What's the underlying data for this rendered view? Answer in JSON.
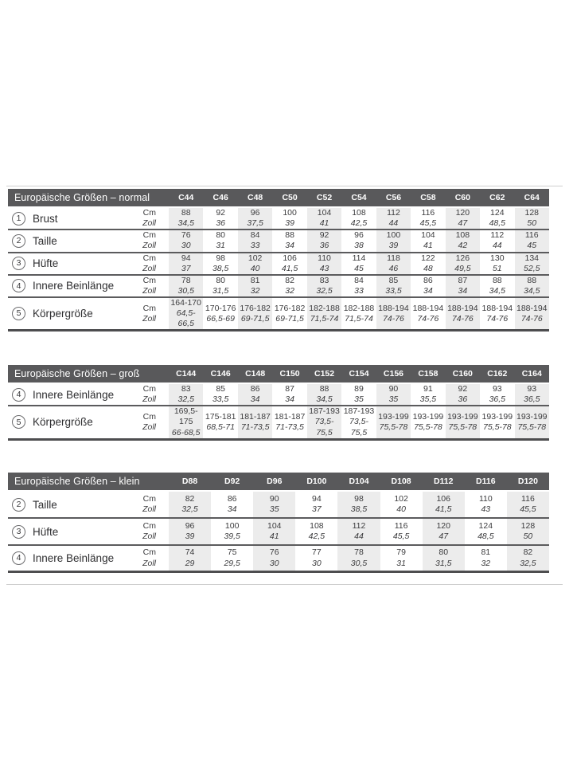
{
  "colors": {
    "header_bg": "#59595b",
    "header_text": "#ffffff",
    "column_shade": "#ececec",
    "row_border": "#5b5b5d",
    "text": "#3c3c3e"
  },
  "unit_labels": {
    "cm": "Cm",
    "zoll": "Zoll"
  },
  "tables": [
    {
      "title": "Europäische Größen – normal",
      "columns": [
        "C44",
        "C46",
        "C48",
        "C50",
        "C52",
        "C54",
        "C56",
        "C58",
        "C60",
        "C62",
        "C64"
      ],
      "rows": [
        {
          "num": "1",
          "label": "Brust",
          "cm": [
            "88",
            "92",
            "96",
            "100",
            "104",
            "108",
            "112",
            "116",
            "120",
            "124",
            "128"
          ],
          "zoll": [
            "34,5",
            "36",
            "37,5",
            "39",
            "41",
            "42,5",
            "44",
            "45,5",
            "47",
            "48,5",
            "50"
          ]
        },
        {
          "num": "2",
          "label": "Taille",
          "cm": [
            "76",
            "80",
            "84",
            "88",
            "92",
            "96",
            "100",
            "104",
            "108",
            "112",
            "116"
          ],
          "zoll": [
            "30",
            "31",
            "33",
            "34",
            "36",
            "38",
            "39",
            "41",
            "42",
            "44",
            "45"
          ]
        },
        {
          "num": "3",
          "label": "Hüfte",
          "cm": [
            "94",
            "98",
            "102",
            "106",
            "110",
            "114",
            "118",
            "122",
            "126",
            "130",
            "134"
          ],
          "zoll": [
            "37",
            "38,5",
            "40",
            "41,5",
            "43",
            "45",
            "46",
            "48",
            "49,5",
            "51",
            "52,5"
          ]
        },
        {
          "num": "4",
          "label": "Innere Beinlänge",
          "cm": [
            "78",
            "80",
            "81",
            "82",
            "83",
            "84",
            "85",
            "86",
            "87",
            "88",
            "88"
          ],
          "zoll": [
            "30,5",
            "31,5",
            "32",
            "32",
            "32,5",
            "33",
            "33,5",
            "34",
            "34",
            "34,5",
            "34,5"
          ]
        },
        {
          "num": "5",
          "label": "Körpergröße",
          "cm": [
            "164-170",
            "170-176",
            "176-182",
            "176-182",
            "182-188",
            "182-188",
            "188-194",
            "188-194",
            "188-194",
            "188-194",
            "188-194"
          ],
          "zoll": [
            "64,5-66,5",
            "66,5-69",
            "69-71,5",
            "69-71,5",
            "71,5-74",
            "71,5-74",
            "74-76",
            "74-76",
            "74-76",
            "74-76",
            "74-76"
          ]
        }
      ]
    },
    {
      "title": "Europäische Größen – groß",
      "columns": [
        "C144",
        "C146",
        "C148",
        "C150",
        "C152",
        "C154",
        "C156",
        "C158",
        "C160",
        "C162",
        "C164"
      ],
      "rows": [
        {
          "num": "4",
          "label": "Innere Beinlänge",
          "cm": [
            "83",
            "85",
            "86",
            "87",
            "88",
            "89",
            "90",
            "91",
            "92",
            "93",
            "93"
          ],
          "zoll": [
            "32,5",
            "33,5",
            "34",
            "34",
            "34,5",
            "35",
            "35",
            "35,5",
            "36",
            "36,5",
            "36,5"
          ]
        },
        {
          "num": "5",
          "label": "Körpergröße",
          "cm": [
            "169,5-175",
            "175-181",
            "181-187",
            "181-187",
            "187-193",
            "187-193",
            "193-199",
            "193-199",
            "193-199",
            "193-199",
            "193-199"
          ],
          "zoll": [
            "66-68,5",
            "68,5-71",
            "71-73,5",
            "71-73,5",
            "73,5-75,5",
            "73,5-75,5",
            "75,5-78",
            "75,5-78",
            "75,5-78",
            "75,5-78",
            "75,5-78"
          ]
        }
      ]
    },
    {
      "title": "Europäische Größen – klein",
      "columns": [
        "D88",
        "D92",
        "D96",
        "D100",
        "D104",
        "D108",
        "D112",
        "D116",
        "D120"
      ],
      "rows": [
        {
          "num": "2",
          "label": "Taille",
          "cm": [
            "82",
            "86",
            "90",
            "94",
            "98",
            "102",
            "106",
            "110",
            "116"
          ],
          "zoll": [
            "32,5",
            "34",
            "35",
            "37",
            "38,5",
            "40",
            "41,5",
            "43",
            "45,5"
          ]
        },
        {
          "num": "3",
          "label": "Hüfte",
          "cm": [
            "96",
            "100",
            "104",
            "108",
            "112",
            "116",
            "120",
            "124",
            "128"
          ],
          "zoll": [
            "39",
            "39,5",
            "41",
            "42,5",
            "44",
            "45,5",
            "47",
            "48,5",
            "50"
          ]
        },
        {
          "num": "4",
          "label": "Innere Beinlänge",
          "cm": [
            "74",
            "75",
            "76",
            "77",
            "78",
            "79",
            "80",
            "81",
            "82"
          ],
          "zoll": [
            "29",
            "29,5",
            "30",
            "30",
            "30,5",
            "31",
            "31,5",
            "32",
            "32,5"
          ]
        }
      ]
    }
  ]
}
